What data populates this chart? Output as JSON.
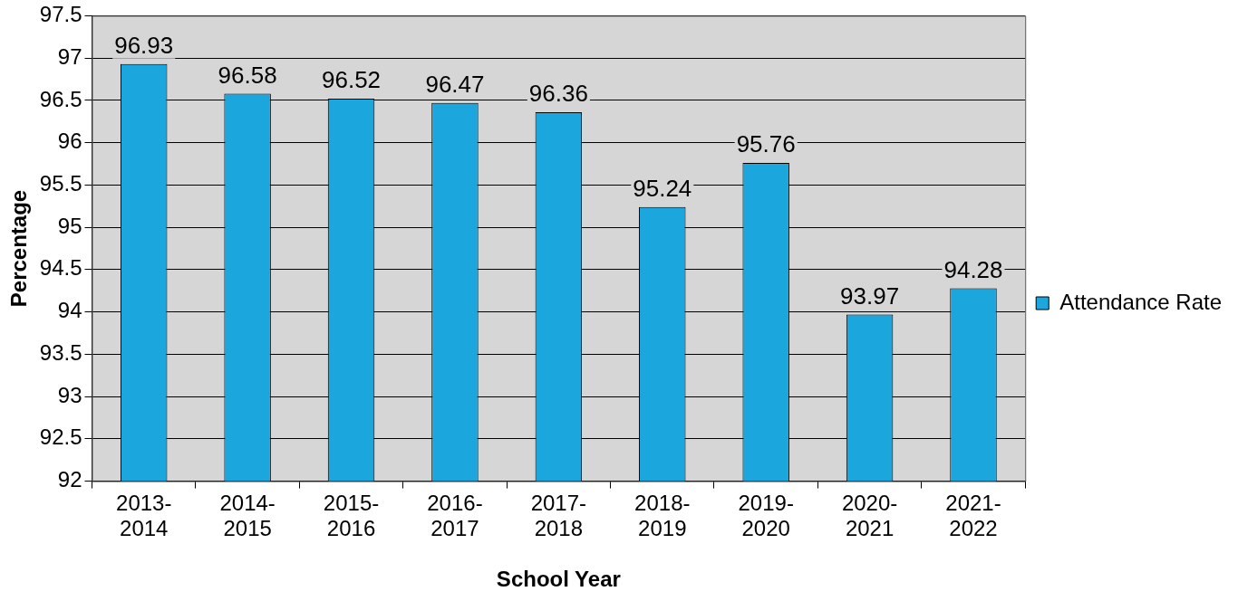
{
  "chart_data": {
    "type": "bar",
    "xlabel": "School Year",
    "ylabel": "Percentage",
    "categories": [
      "2013-2014",
      "2014-2015",
      "2015-2016",
      "2016-2017",
      "2017-2018",
      "2018-2019",
      "2019-2020",
      "2020-2021",
      "2021-2022"
    ],
    "series": [
      {
        "name": "Attendance Rate",
        "color": "#1ba6de",
        "values": [
          96.93,
          96.58,
          96.52,
          96.47,
          96.36,
          95.24,
          95.76,
          93.97,
          94.28
        ]
      }
    ],
    "ylim": [
      92,
      97.5
    ],
    "yticks": [
      92,
      92.5,
      93,
      93.5,
      94,
      94.5,
      95,
      95.5,
      96,
      96.5,
      97,
      97.5
    ],
    "grid": "y",
    "legend": "right",
    "data_labels": true
  }
}
